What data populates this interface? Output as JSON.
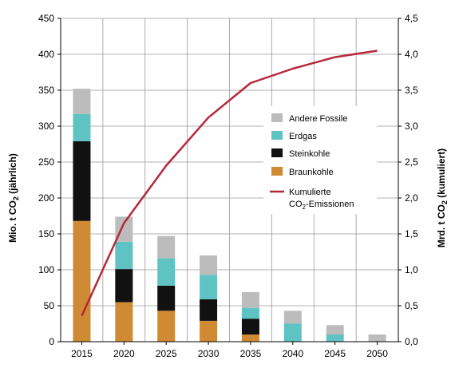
{
  "chart_data": {
    "type": "bar",
    "categories": [
      "2015",
      "2020",
      "2025",
      "2030",
      "2035",
      "2040",
      "2045",
      "2050"
    ],
    "series": [
      {
        "name": "Braunkohle",
        "color": "#d08a34",
        "values": [
          168,
          55,
          43,
          29,
          10,
          0,
          0,
          0
        ]
      },
      {
        "name": "Steinkohle",
        "color": "#111111",
        "values": [
          111,
          46,
          35,
          30,
          22,
          0,
          0,
          0
        ]
      },
      {
        "name": "Erdgas",
        "color": "#5fc3c3",
        "values": [
          38,
          38,
          38,
          34,
          15,
          25,
          10,
          0
        ]
      },
      {
        "name": "Andere Fossile",
        "color": "#bcbcbc",
        "values": [
          35,
          35,
          31,
          27,
          22,
          18,
          13,
          10
        ]
      }
    ],
    "line": {
      "name_line1": "Kumulierte",
      "name_line2_prefix": "CO",
      "name_line2_sub": "2",
      "name_line2_suffix": "-Emissionen",
      "color": "#b5283a",
      "values": [
        0.36,
        1.65,
        2.45,
        3.12,
        3.6,
        3.8,
        3.96,
        4.05
      ]
    },
    "y_left": {
      "label_prefix": "Mio. t CO",
      "label_sub": "2",
      "label_suffix": " (jährlich)",
      "min": 0,
      "max": 450,
      "ticks": [
        "0",
        "50",
        "100",
        "150",
        "200",
        "250",
        "300",
        "350",
        "400",
        "450"
      ]
    },
    "y_right": {
      "label_prefix": "Mrd. t CO",
      "label_sub": "2",
      "label_suffix": " (kumuliert)",
      "min": 0,
      "max": 4.5,
      "ticks": [
        "0,0",
        "0,5",
        "1,0",
        "1,5",
        "2,0",
        "2,5",
        "3,0",
        "3,5",
        "4,0",
        "4,5"
      ]
    },
    "legend": [
      "Andere Fossile",
      "Erdgas",
      "Steinkohle",
      "Braunkohle"
    ],
    "legend_position": "right",
    "grid": true
  }
}
